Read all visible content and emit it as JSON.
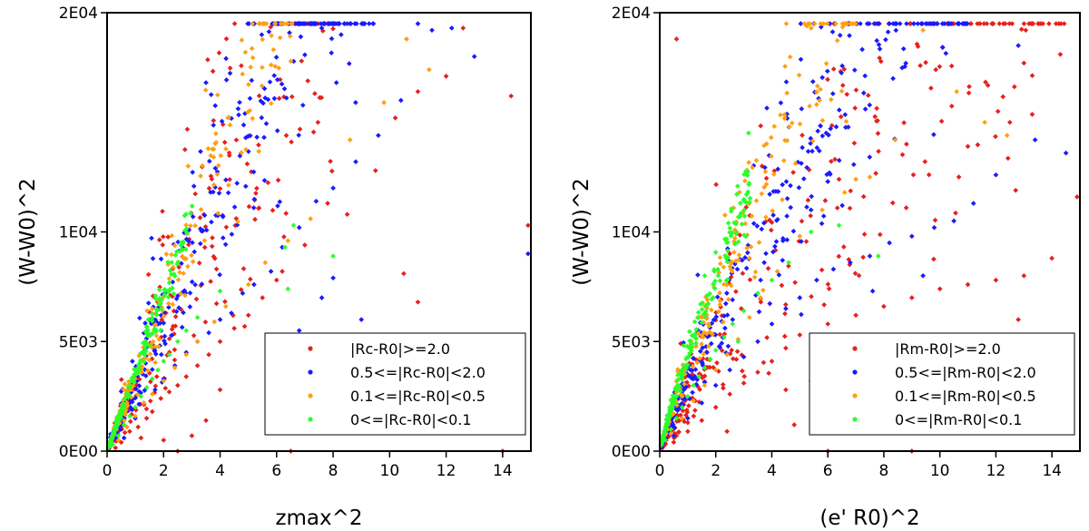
{
  "colors": {
    "series": [
      "#e8201a",
      "#1a1aff",
      "#ffa010",
      "#2aff2a"
    ],
    "axes": "#000000",
    "background": "#ffffff"
  },
  "chart_data": [
    {
      "type": "scatter",
      "xlabel": "zmax^2",
      "ylabel": "(W-W0)^2",
      "xlim": [
        0,
        15
      ],
      "ylim": [
        0,
        20000
      ],
      "x_ticks": [
        0,
        2,
        4,
        6,
        8,
        10,
        12,
        14
      ],
      "x_tick_labels": [
        "0",
        "2",
        "4",
        "6",
        "8",
        "10",
        "12",
        "14"
      ],
      "y_ticks": [
        0,
        10000,
        20000
      ],
      "y_tick_labels": [
        "0E00",
        "1E04",
        "2E04"
      ],
      "y_tick_positions_extra": [
        5000
      ],
      "y_tick_labels_extra": [
        "5E03"
      ],
      "grid": false,
      "legend_position": "lower-right",
      "relation": {
        "k": 3.4,
        "p": 0.72
      },
      "series": [
        {
          "name": "|Rc-R0|>=2.0",
          "color": "#e8201a",
          "values": [
            [
              0.3,
              150
            ],
            [
              0.5,
              400
            ],
            [
              0.8,
              900
            ],
            [
              1.1,
              1100
            ],
            [
              1.4,
              1500
            ],
            [
              1.6,
              1800
            ],
            [
              1.9,
              2400
            ],
            [
              2.2,
              2700
            ],
            [
              2.5,
              3000
            ],
            [
              2.8,
              3400
            ],
            [
              3.2,
              3900
            ],
            [
              3.6,
              4400
            ],
            [
              4.0,
              5000
            ],
            [
              4.5,
              5600
            ],
            [
              5.0,
              6200
            ],
            [
              5.5,
              7000
            ],
            [
              6.2,
              8200
            ],
            [
              7.0,
              9400
            ],
            [
              8.5,
              10800
            ],
            [
              9.5,
              12800
            ],
            [
              10.2,
              15200
            ],
            [
              11.0,
              16400
            ],
            [
              12.0,
              17100
            ],
            [
              12.6,
              19300
            ],
            [
              14.3,
              16200
            ],
            [
              14.9,
              10300
            ],
            [
              10.5,
              8100
            ],
            [
              11.0,
              6800
            ],
            [
              6.0,
              7800
            ],
            [
              4.0,
              2800
            ],
            [
              3.0,
              700
            ],
            [
              2.5,
              0
            ],
            [
              6.5,
              0
            ],
            [
              14.0,
              0
            ],
            [
              7.4,
              4200
            ],
            [
              2.0,
              500
            ],
            [
              1.2,
              600
            ],
            [
              3.5,
              1400
            ]
          ]
        },
        {
          "name": "0.5<=|Rc-R0|<2.0",
          "color": "#1a1aff",
          "values": [
            [
              0.6,
              600
            ],
            [
              1.0,
              1500
            ],
            [
              1.3,
              2200
            ],
            [
              1.7,
              2800
            ],
            [
              2.0,
              3300
            ],
            [
              2.4,
              3900
            ],
            [
              2.8,
              4500
            ],
            [
              3.2,
              5000
            ],
            [
              3.6,
              5400
            ],
            [
              4.0,
              6000
            ],
            [
              4.4,
              6300
            ],
            [
              4.8,
              7200
            ],
            [
              5.2,
              7600
            ],
            [
              5.8,
              8200
            ],
            [
              6.2,
              9300
            ],
            [
              6.8,
              10200
            ],
            [
              7.4,
              11400
            ],
            [
              8.0,
              12000
            ],
            [
              8.8,
              13200
            ],
            [
              9.6,
              14400
            ],
            [
              10.4,
              16000
            ],
            [
              11.0,
              19500
            ],
            [
              11.5,
              19200
            ],
            [
              12.2,
              19300
            ],
            [
              13.0,
              18000
            ],
            [
              14.9,
              9000
            ],
            [
              8.0,
              7900
            ],
            [
              7.6,
              7000
            ],
            [
              6.8,
              5500
            ],
            [
              9.0,
              6000
            ]
          ]
        },
        {
          "name": "0.1<=|Rc-R0|<0.5",
          "color": "#ffa010",
          "values": [
            [
              0.4,
              500
            ],
            [
              0.7,
              1100
            ],
            [
              1.0,
              1600
            ],
            [
              1.3,
              2200
            ],
            [
              1.6,
              2600
            ],
            [
              2.0,
              3200
            ],
            [
              2.4,
              3800
            ],
            [
              2.8,
              4400
            ],
            [
              3.2,
              5000
            ],
            [
              3.8,
              5900
            ],
            [
              4.2,
              6600
            ],
            [
              5.0,
              7600
            ],
            [
              5.6,
              8600
            ],
            [
              6.4,
              9600
            ],
            [
              7.2,
              10600
            ],
            [
              8.6,
              14200
            ],
            [
              10.6,
              18800
            ],
            [
              11.4,
              17400
            ],
            [
              9.8,
              15900
            ]
          ]
        },
        {
          "name": "0<=|Rc-R0|<0.1",
          "color": "#2aff2a",
          "values": [
            [
              0.2,
              300
            ],
            [
              0.4,
              700
            ],
            [
              0.6,
              1200
            ],
            [
              0.8,
              1600
            ],
            [
              1.0,
              2000
            ],
            [
              1.2,
              2500
            ],
            [
              1.4,
              2900
            ],
            [
              1.6,
              3300
            ],
            [
              1.8,
              3700
            ],
            [
              2.0,
              4100
            ],
            [
              2.2,
              4400
            ],
            [
              2.5,
              5000
            ],
            [
              2.8,
              5500
            ],
            [
              3.2,
              6100
            ],
            [
              4.0,
              7300
            ],
            [
              6.3,
              9300
            ],
            [
              6.6,
              10300
            ],
            [
              6.4,
              7400
            ],
            [
              8.0,
              8900
            ]
          ]
        }
      ]
    },
    {
      "type": "scatter",
      "xlabel": "(e' R0)^2",
      "ylabel": "(W-W0)^2",
      "xlim": [
        0,
        15
      ],
      "ylim": [
        0,
        20000
      ],
      "x_ticks": [
        0,
        2,
        4,
        6,
        8,
        10,
        12,
        14
      ],
      "x_tick_labels": [
        "0",
        "2",
        "4",
        "6",
        "8",
        "10",
        "12",
        "14"
      ],
      "y_ticks": [
        0,
        10000,
        20000
      ],
      "y_tick_labels": [
        "0E00",
        "1E04",
        "2E04"
      ],
      "y_tick_positions_extra": [
        5000
      ],
      "y_tick_labels_extra": [
        "5E03"
      ],
      "grid": false,
      "legend_position": "lower-right",
      "relation": {
        "k": 3.9,
        "p": 0.6
      },
      "series": [
        {
          "name": "|Rm-R0|>=2.0",
          "color": "#e8201a",
          "values": [
            [
              0.5,
              400
            ],
            [
              1.0,
              900
            ],
            [
              1.5,
              1400
            ],
            [
              2.0,
              2000
            ],
            [
              2.5,
              2600
            ],
            [
              3.0,
              3100
            ],
            [
              3.5,
              3600
            ],
            [
              4.0,
              4100
            ],
            [
              4.5,
              4700
            ],
            [
              5.0,
              5300
            ],
            [
              6.0,
              5800
            ],
            [
              7.0,
              6200
            ],
            [
              8.0,
              6600
            ],
            [
              9.0,
              7000
            ],
            [
              10.0,
              7400
            ],
            [
              11.0,
              7600
            ],
            [
              12.0,
              7800
            ],
            [
              13.0,
              8000
            ],
            [
              14.0,
              8800
            ],
            [
              14.9,
              11600
            ],
            [
              14.3,
              18100
            ],
            [
              13.0,
              17700
            ],
            [
              11.0,
              13900
            ],
            [
              8.8,
              11100
            ],
            [
              6.4,
              12400
            ],
            [
              12.8,
              6000
            ],
            [
              8.2,
              4400
            ],
            [
              5.4,
              3200
            ],
            [
              4.5,
              2800
            ],
            [
              4.8,
              1200
            ],
            [
              0.6,
              18800
            ],
            [
              9.0,
              0
            ],
            [
              6.0,
              0
            ],
            [
              2.4,
              900
            ],
            [
              7.2,
              1700
            ],
            [
              12.5,
              15000
            ]
          ]
        },
        {
          "name": "0.5<=|Rm-R0|<2.0",
          "color": "#1a1aff",
          "values": [
            [
              0.5,
              700
            ],
            [
              1.0,
              1500
            ],
            [
              1.5,
              2200
            ],
            [
              2.0,
              3000
            ],
            [
              2.5,
              3700
            ],
            [
              3.0,
              4300
            ],
            [
              3.5,
              5000
            ],
            [
              4.0,
              5800
            ],
            [
              4.5,
              6500
            ],
            [
              5.0,
              7000
            ],
            [
              5.6,
              7800
            ],
            [
              6.2,
              8300
            ],
            [
              6.8,
              8600
            ],
            [
              7.5,
              8900
            ],
            [
              8.2,
              9500
            ],
            [
              9.0,
              9800
            ],
            [
              9.8,
              10200
            ],
            [
              10.5,
              10500
            ],
            [
              11.2,
              11300
            ],
            [
              12.0,
              12600
            ],
            [
              12.8,
              18500
            ],
            [
              13.4,
              14200
            ],
            [
              14.5,
              13600
            ],
            [
              5.4,
              11000
            ],
            [
              4.4,
              9600
            ],
            [
              6.0,
              12300
            ],
            [
              3.6,
              7800
            ],
            [
              2.6,
              6000
            ],
            [
              9.4,
              8000
            ],
            [
              7.6,
              7300
            ]
          ]
        },
        {
          "name": "0.1<=|Rm-R0|<0.5",
          "color": "#ffa010",
          "values": [
            [
              0.4,
              800
            ],
            [
              0.8,
              1500
            ],
            [
              1.2,
              2300
            ],
            [
              1.6,
              3000
            ],
            [
              2.0,
              3700
            ],
            [
              2.4,
              4400
            ],
            [
              2.8,
              5100
            ],
            [
              3.2,
              6100
            ],
            [
              3.6,
              7000
            ],
            [
              4.2,
              8200
            ],
            [
              5.0,
              9800
            ],
            [
              5.8,
              11000
            ],
            [
              6.6,
              11800
            ],
            [
              7.5,
              12500
            ],
            [
              8.4,
              14200
            ],
            [
              9.4,
              19200
            ],
            [
              10.6,
              16400
            ],
            [
              11.6,
              15000
            ],
            [
              12.4,
              14400
            ],
            [
              7.0,
              12400
            ]
          ]
        },
        {
          "name": "0<=|Rm-R0|<0.1",
          "color": "#2aff2a",
          "values": [
            [
              0.2,
              500
            ],
            [
              0.4,
              1000
            ],
            [
              0.6,
              1500
            ],
            [
              0.8,
              2000
            ],
            [
              1.0,
              2500
            ],
            [
              1.2,
              3000
            ],
            [
              1.4,
              3400
            ],
            [
              1.6,
              3800
            ],
            [
              1.8,
              4200
            ],
            [
              2.0,
              4600
            ],
            [
              2.3,
              5200
            ],
            [
              2.6,
              5800
            ],
            [
              3.0,
              6400
            ],
            [
              3.5,
              7200
            ],
            [
              4.0,
              7800
            ],
            [
              4.6,
              8600
            ],
            [
              5.4,
              10000
            ],
            [
              6.4,
              10300
            ],
            [
              7.8,
              8900
            ],
            [
              2.8,
              5000
            ]
          ]
        }
      ]
    }
  ]
}
